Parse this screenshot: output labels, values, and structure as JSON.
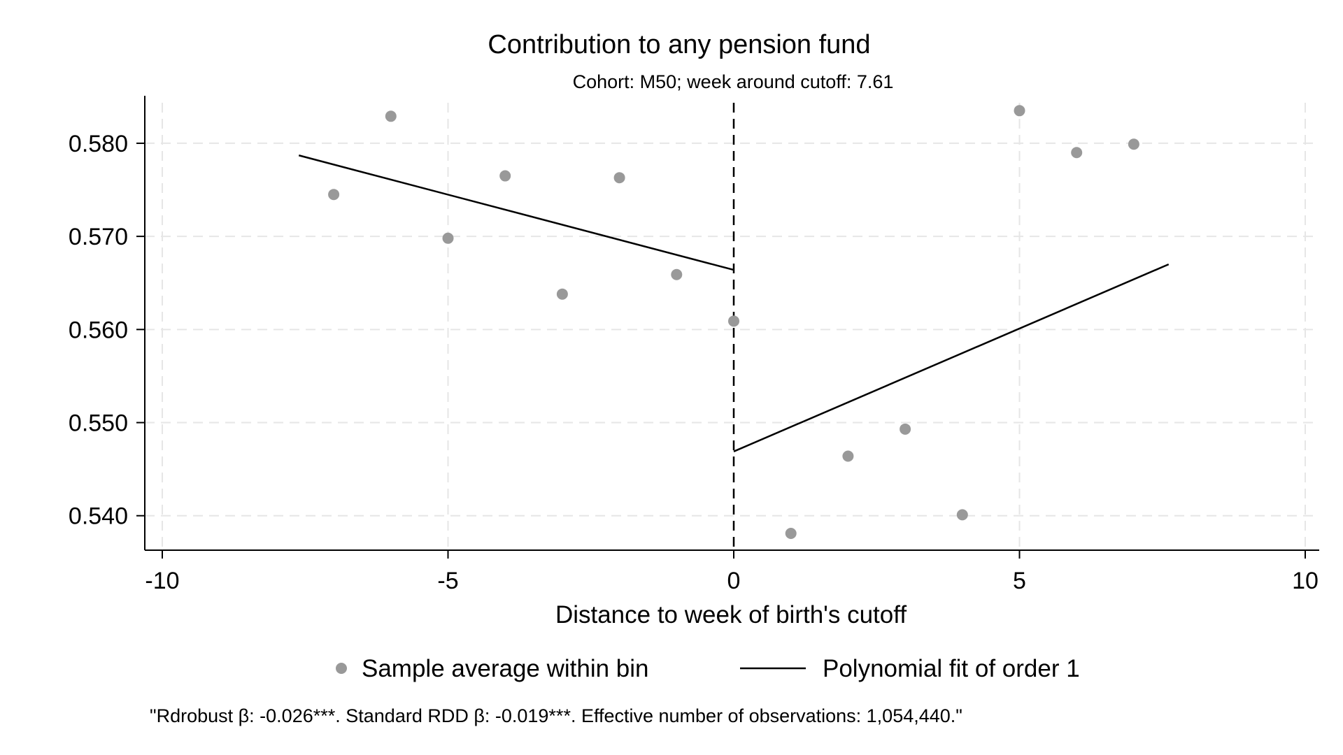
{
  "chart_data": {
    "type": "scatter",
    "title": "Contribution to any pension fund",
    "subtitle": "Cohort: M50; week around cutoff: 7.61",
    "xlabel": "Distance to week of birth's cutoff",
    "ylabel": "",
    "xlim": [
      -10,
      10
    ],
    "ylim": [
      0.5363,
      0.5851
    ],
    "x_ticks": [
      -10,
      -5,
      0,
      5,
      10
    ],
    "x_tick_labels": [
      "-10",
      "-5",
      "0",
      "5",
      "10"
    ],
    "y_ticks": [
      0.54,
      0.55,
      0.56,
      0.57,
      0.58
    ],
    "y_tick_labels": [
      "0.540",
      "0.550",
      "0.560",
      "0.570",
      "0.580"
    ],
    "grid": true,
    "cutoff_line": 0,
    "series": [
      {
        "name": "Sample average within bin",
        "kind": "scatter",
        "color": "#999999",
        "x": [
          -7,
          -6,
          -5,
          -4,
          -3,
          -2,
          -1,
          0,
          1,
          2,
          3,
          4,
          5,
          6,
          7
        ],
        "y": [
          0.5745,
          0.5829,
          0.5698,
          0.5765,
          0.5638,
          0.5763,
          0.5659,
          0.5609,
          0.5381,
          0.5464,
          0.5493,
          0.5401,
          0.5835,
          0.579,
          0.5799
        ]
      },
      {
        "name": "Polynomial fit of order 1",
        "kind": "line",
        "color": "#000000",
        "segments": [
          {
            "x": [
              -7.61,
              0
            ],
            "y": [
              0.5787,
              0.5664
            ]
          },
          {
            "x": [
              0,
              7.61
            ],
            "y": [
              0.5469,
              0.567
            ]
          }
        ]
      }
    ],
    "legend": {
      "placement": "bottom",
      "items": [
        "Sample average within bin",
        "Polynomial fit of order 1"
      ]
    },
    "note": "\"Rdrobust β: -0.026***. Standard RDD β: -0.019***. Effective number of observations: 1,054,440.\""
  }
}
